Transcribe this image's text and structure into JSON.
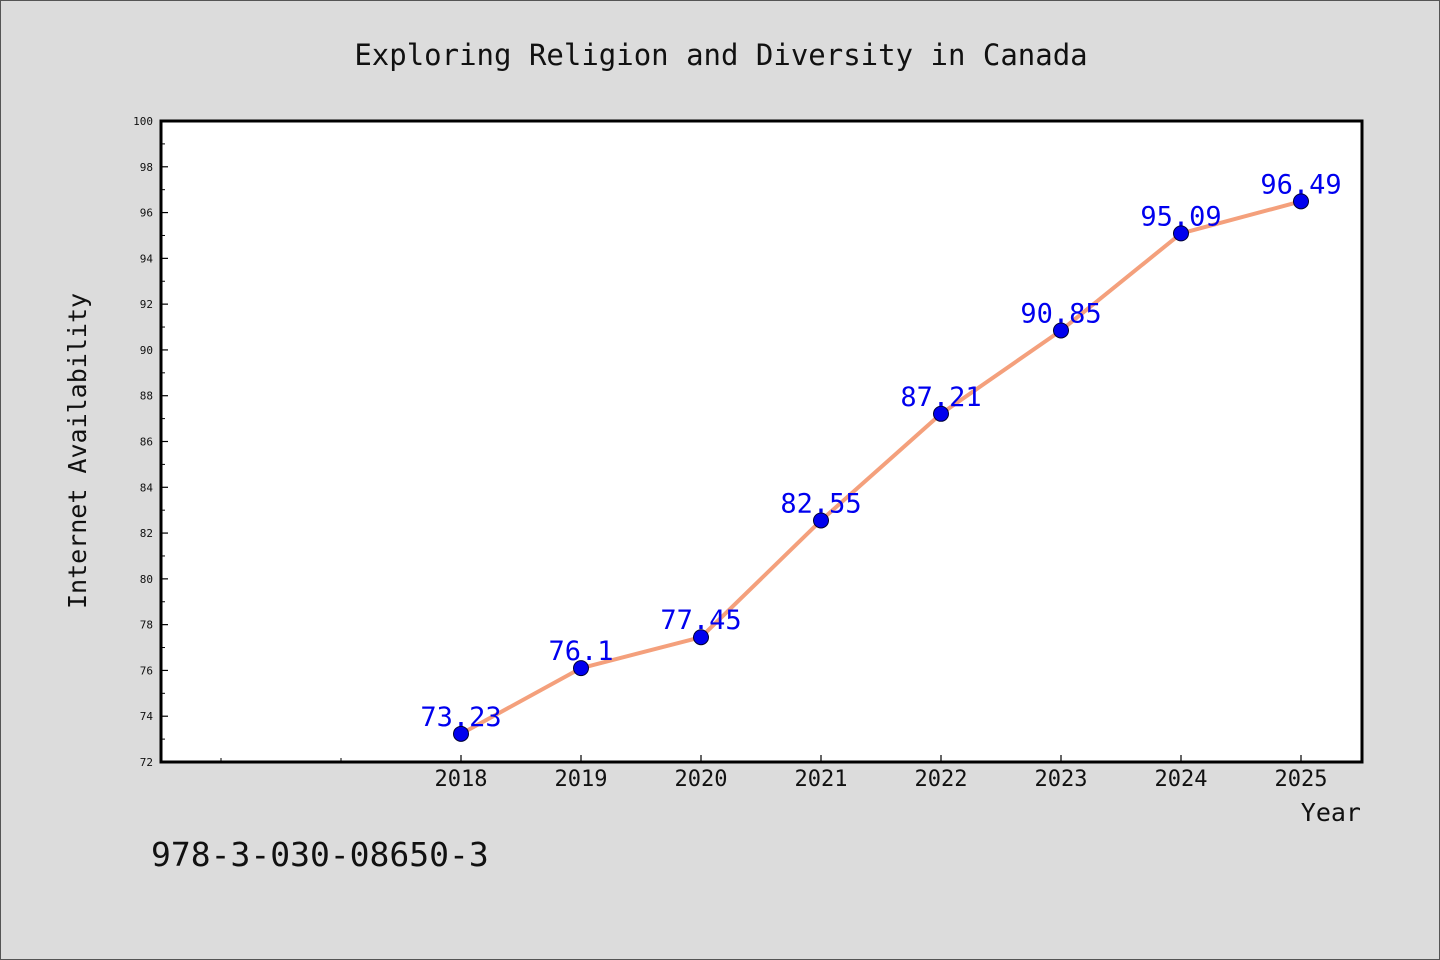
{
  "chart_data": {
    "type": "line",
    "title": "Exploring Religion and Diversity in Canada",
    "xlabel": "Year",
    "ylabel": "Internet Availability",
    "categories": [
      "2018",
      "2019",
      "2020",
      "2021",
      "2022",
      "2023",
      "2024",
      "2025"
    ],
    "series": [
      {
        "values": [
          73.23,
          76.1,
          77.45,
          82.55,
          87.21,
          90.85,
          95.09,
          96.49
        ],
        "data_labels": [
          "73.23",
          "76.1",
          "77.45",
          "82.55",
          "87.21",
          "90.85",
          "95.09",
          "96.49"
        ]
      }
    ],
    "ylim": [
      72,
      100
    ],
    "y_ticks": [
      "72",
      "74",
      "76",
      "78",
      "80",
      "82",
      "84",
      "86",
      "88",
      "90",
      "92",
      "94",
      "96",
      "98",
      "100"
    ],
    "grid": false,
    "colors": {
      "line": "#f4a07c",
      "marker": "#0000ee",
      "label": "#0000ee",
      "background": "#dcdcdc",
      "plot_background": "#ffffff"
    }
  },
  "footer_code": "978-3-030-08650-3"
}
